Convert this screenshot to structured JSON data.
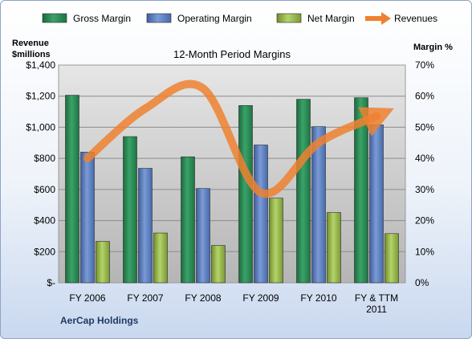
{
  "chart_data": {
    "type": "bar",
    "title": "12-Month Period Margins",
    "ylabel_left": [
      "Revenue",
      "$millions"
    ],
    "ylabel_right": "Margin %",
    "company": "AerCap Holdings",
    "categories": [
      [
        "FY 2006"
      ],
      [
        "FY 2007"
      ],
      [
        "FY 2008"
      ],
      [
        "FY 2009"
      ],
      [
        "FY 2010"
      ],
      [
        "FY & TTM",
        "2011"
      ]
    ],
    "left_axis": {
      "ylim": [
        0,
        1400
      ],
      "ticks": [
        "$-",
        "$200",
        "$400",
        "$600",
        "$800",
        "$1,000",
        "$1,200",
        "$1,400"
      ]
    },
    "right_axis": {
      "ylim": [
        0,
        70
      ],
      "ticks": [
        "0%",
        "10%",
        "20%",
        "30%",
        "40%",
        "50%",
        "60%",
        "70%"
      ]
    },
    "series": [
      {
        "name": "Gross Margin",
        "kind": "bar",
        "axis": "right",
        "color": "#2e8b57",
        "values": [
          60.3,
          47.0,
          40.5,
          57.0,
          59.0,
          59.5
        ]
      },
      {
        "name": "Operating Margin",
        "kind": "bar",
        "axis": "right",
        "color": "#5b7fc0",
        "values": [
          42.0,
          36.8,
          30.3,
          44.3,
          50.2,
          50.8
        ]
      },
      {
        "name": "Net Margin",
        "kind": "bar",
        "axis": "right",
        "color": "#98b84a",
        "values": [
          13.3,
          16.0,
          12.0,
          27.2,
          22.6,
          15.8
        ]
      },
      {
        "name": "Revenues",
        "kind": "line",
        "axis": "left",
        "color": "#ee8130",
        "values": [
          800,
          1120,
          1250,
          580,
          900,
          1070
        ]
      }
    ],
    "grid": true,
    "legend": "top"
  }
}
